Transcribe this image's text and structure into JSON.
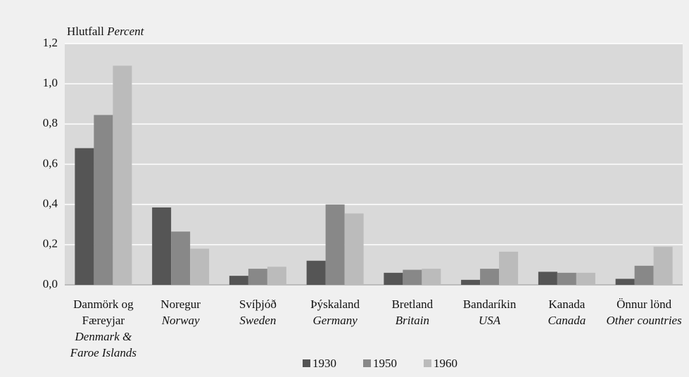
{
  "chart_data": {
    "type": "bar",
    "y_label": "Hlutfall",
    "y_label_en": "Percent",
    "categories": [
      "Danmörk og Færeyjar",
      "Noregur",
      "Svíþjóð",
      "Þýskaland",
      "Bretland",
      "Bandaríkin",
      "Kanada",
      "Önnur lönd"
    ],
    "categories_en": [
      "Denmark & Faroe Islands",
      "Norway",
      "Sweden",
      "Germany",
      "Britain",
      "USA",
      "Canada",
      "Other countries"
    ],
    "series": [
      {
        "name": "1930",
        "color": "#555555",
        "values": [
          0.68,
          0.385,
          0.045,
          0.12,
          0.06,
          0.025,
          0.065,
          0.03
        ]
      },
      {
        "name": "1950",
        "color": "#888888",
        "values": [
          0.845,
          0.265,
          0.08,
          0.4,
          0.075,
          0.08,
          0.06,
          0.095
        ]
      },
      {
        "name": "1960",
        "color": "#bbbbbb",
        "values": [
          1.09,
          0.18,
          0.09,
          0.355,
          0.08,
          0.165,
          0.06,
          0.19
        ]
      }
    ],
    "ylim": [
      0,
      1.2
    ],
    "yticks": [
      {
        "value": 0,
        "label": "0,0"
      },
      {
        "value": 0.2,
        "label": "0,2"
      },
      {
        "value": 0.4,
        "label": "0,4"
      },
      {
        "value": 0.6,
        "label": "0,6"
      },
      {
        "value": 0.8,
        "label": "0,8"
      },
      {
        "value": 1.0,
        "label": "1,0"
      },
      {
        "value": 1.2,
        "label": "1,2"
      }
    ],
    "grid": true,
    "legend": "bottom"
  }
}
